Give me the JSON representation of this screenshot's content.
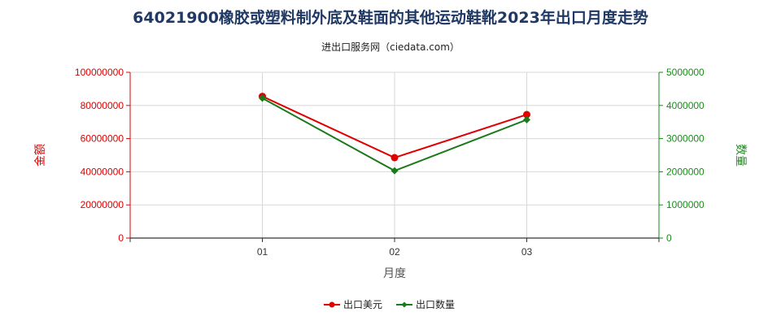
{
  "chart_data": {
    "type": "line",
    "title": "64021900橡胶或塑料制外底及鞋面的其他运动鞋靴2023年出口月度走势",
    "subtitle": "进出口服务网（ciedata.com）",
    "xlabel": "月度",
    "ylabel_left": "金额",
    "ylabel_right": "数量",
    "categories": [
      "01",
      "02",
      "03"
    ],
    "y_left": {
      "min": 0,
      "max": 100000000,
      "ticks": [
        0,
        20000000,
        40000000,
        60000000,
        80000000,
        100000000
      ]
    },
    "y_right": {
      "min": 0,
      "max": 5000000,
      "ticks": [
        0,
        1000000,
        2000000,
        3000000,
        4000000,
        5000000
      ]
    },
    "series": [
      {
        "name": "出口美元",
        "axis": "left",
        "color": "#e00000",
        "marker": "circle",
        "values": [
          85500000,
          48500000,
          74500000
        ]
      },
      {
        "name": "出口数量",
        "axis": "right",
        "color": "#1a7a1a",
        "marker": "diamond",
        "values": [
          4220000,
          2030000,
          3570000
        ]
      }
    ],
    "grid": true,
    "legend_position": "bottom-center"
  },
  "colors": {
    "left_axis": "#e00000",
    "right_axis": "#1a8a1a",
    "grid": "#d8d8d8"
  }
}
